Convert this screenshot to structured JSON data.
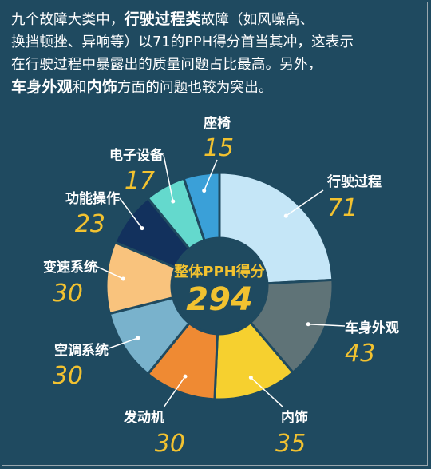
{
  "intro": {
    "line1_a": "九个故障大类中，",
    "line1_b": "行驶过程类",
    "line1_c": "故障（如风噪高、",
    "line2": "换挡顿挫、异响等）以71的PPH得分首当其冲，这表示",
    "line3": "在行驶过程中暴露出的质量问题占比最高。另外，",
    "line4_a": "车身外观",
    "line4_b": "和",
    "line4_c": "内饰",
    "line4_d": "方面的问题也较为突出。"
  },
  "chart_data": {
    "type": "pie",
    "style": "donut",
    "center_title": "整体PPH得分",
    "center_value": "294",
    "total": 294,
    "categories": [
      "行驶过程",
      "车身外观",
      "内饰",
      "发动机",
      "空调系统",
      "变速系统",
      "功能操作",
      "电子设备",
      "座椅"
    ],
    "values": [
      71,
      43,
      35,
      30,
      30,
      30,
      23,
      17,
      15
    ],
    "colors": [
      "#c5e6f7",
      "#5f7377",
      "#f6d02f",
      "#ef8a33",
      "#79b2cc",
      "#f9c37d",
      "#12315d",
      "#64d9cd",
      "#3aa0d8"
    ]
  },
  "colors": {
    "background": "#1f4a60",
    "value_text": "#f2c230",
    "label_text": "#ffffff",
    "center_fill": "#1f4a60"
  }
}
